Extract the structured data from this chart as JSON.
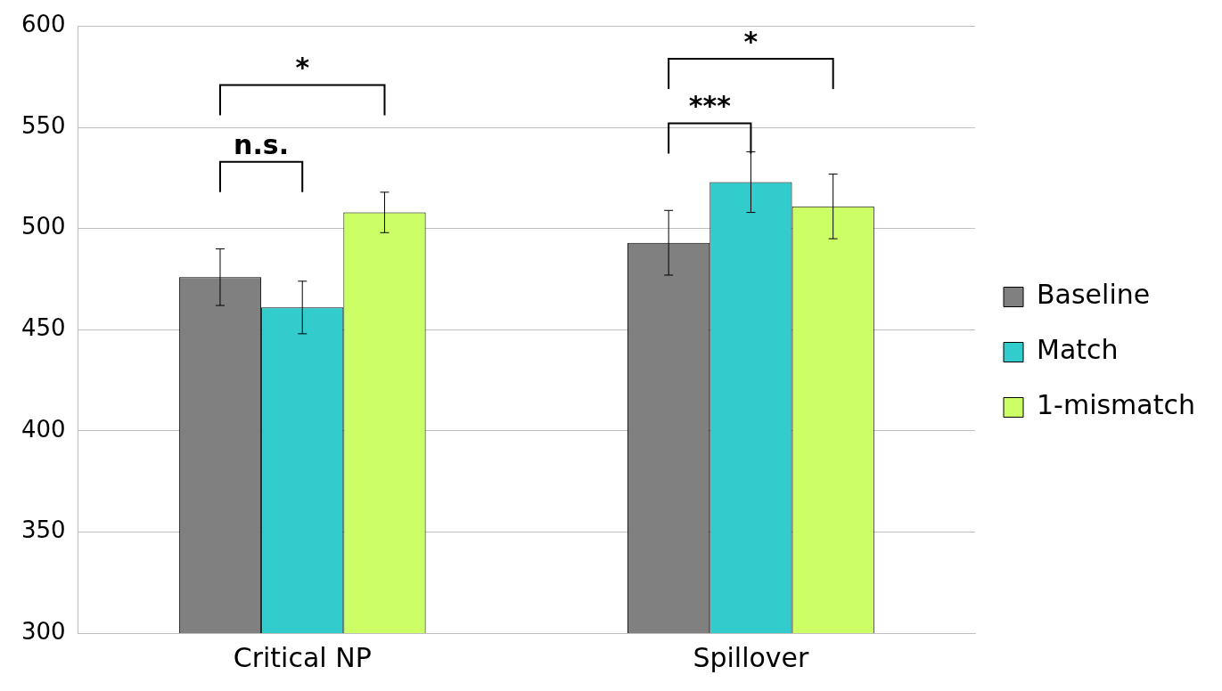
{
  "chart_data": {
    "type": "bar",
    "categories": [
      "Critical NP",
      "Spillover"
    ],
    "series": [
      {
        "name": "Baseline",
        "color": "#808080",
        "values": [
          476,
          493
        ],
        "errors": [
          14,
          16
        ]
      },
      {
        "name": "Match",
        "color": "#33cccc",
        "values": [
          461,
          523
        ],
        "errors": [
          13,
          15
        ]
      },
      {
        "name": "1-mismatch",
        "color": "#ccff66",
        "values": [
          508,
          511
        ],
        "errors": [
          10,
          16
        ]
      }
    ],
    "ylim": [
      300,
      600
    ],
    "yticks": [
      300,
      350,
      400,
      450,
      500,
      550,
      600
    ],
    "grid": "y",
    "legend": "right",
    "annotations": [
      "n.s.",
      "*",
      "***",
      "*"
    ]
  }
}
